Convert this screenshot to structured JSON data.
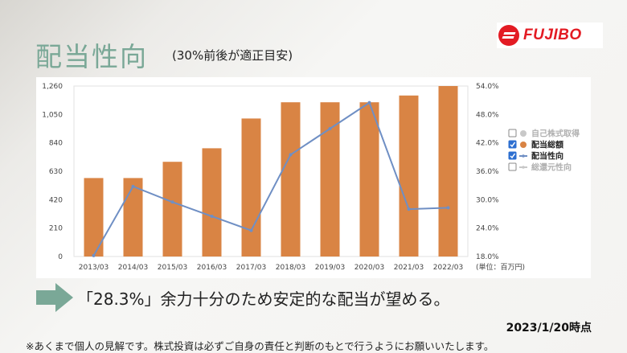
{
  "title": "配当性向",
  "subtitle": "(30%前後が適正目安)",
  "logo_text": "FUJIBO",
  "message": "「28.3%」余力十分のため安定的な配当が望める。",
  "timestamp": "2023/1/20時点",
  "disclaimer": "※あくまで個人の見解です。株式投資は必ずご自身の責任と判断のもとで行うようにお願いいたします。",
  "colors": {
    "bar": "#d98444",
    "line": "#6f8fc4",
    "accent_green": "#7aa897",
    "logo_red": "#e31b23"
  },
  "chart_data": {
    "type": "bar",
    "categories": [
      "2013/03",
      "2014/03",
      "2015/03",
      "2016/03",
      "2017/03",
      "2018/03",
      "2019/03",
      "2020/03",
      "2021/03",
      "2022/03"
    ],
    "series": [
      {
        "name": "配当総額",
        "type": "bar",
        "axis": "left",
        "values": [
          580,
          580,
          700,
          800,
          1020,
          1140,
          1140,
          1140,
          1190,
          1260
        ]
      },
      {
        "name": "配当性向",
        "type": "line",
        "axis": "right",
        "values": [
          18.2,
          32.8,
          29.5,
          26.5,
          23.5,
          39.5,
          45.0,
          50.5,
          28.0,
          28.3
        ]
      }
    ],
    "yticks_left": [
      "0",
      "210",
      "420",
      "630",
      "840",
      "1,050",
      "1,260"
    ],
    "yticks_right": [
      "18.0%",
      "24.0%",
      "30.0%",
      "36.0%",
      "42.0%",
      "48.0%",
      "54.0%"
    ],
    "ylim_left": [
      0,
      1260
    ],
    "ylim_right": [
      18,
      54
    ],
    "unit_label": "(単位：百万円)",
    "legend": [
      {
        "label": "自己株式取得",
        "checked": false,
        "marker": "circle",
        "color": "#c8c8c8",
        "text_color": "#b0b0b0"
      },
      {
        "label": "配当総額",
        "checked": true,
        "marker": "circle",
        "color": "#d98444",
        "text_color": "#222222"
      },
      {
        "label": "配当性向",
        "checked": true,
        "marker": "line",
        "color": "#6f8fc4",
        "text_color": "#222222"
      },
      {
        "label": "総還元性向",
        "checked": false,
        "marker": "line",
        "color": "#c8c8c8",
        "text_color": "#b0b0b0"
      }
    ],
    "legend_position": "right",
    "grid": false
  }
}
